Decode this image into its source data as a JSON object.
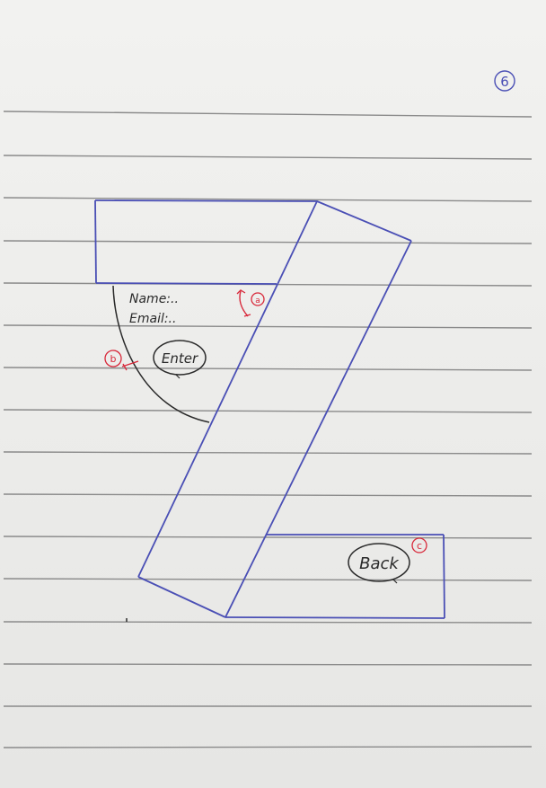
{
  "page": {
    "number": "6"
  },
  "form": {
    "name_label": "Name:..",
    "email_label": "Email:..",
    "enter_button": "Enter"
  },
  "back_button": "Back",
  "annotations": {
    "a": "a",
    "b": "b",
    "c": "c"
  },
  "colors": {
    "ink_blue": "#4a4fb5",
    "ink_black": "#2a2a2a",
    "ink_red": "#d8283a",
    "rule_line": "#8a8a8a"
  }
}
